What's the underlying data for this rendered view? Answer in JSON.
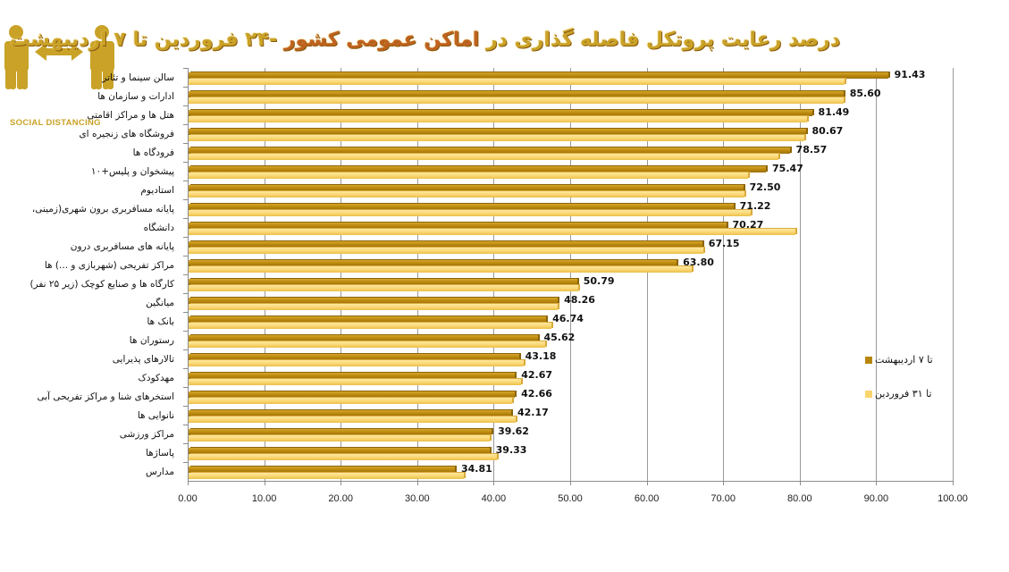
{
  "title": {
    "part1": "درصد رعایت پروتکل فاصله گذاری در",
    "part2": " اماکن عمومی کشور ",
    "part3": "-۲۴ فروردین تا ۷ اردیبهشت",
    "full": "درصد رعایت پروتکل فاصله گذاری در اماکن عمومی کشور -۲۴ فروردین تا ۷ اردیبهشت"
  },
  "logo": {
    "icon": "social-distancing-icon",
    "text": "SOCIAL DISTANCING"
  },
  "legend": {
    "items": [
      {
        "label": "تا ۷ اردیبهشت",
        "color": "#b8860b"
      },
      {
        "label": "تا ۳۱ فروردین",
        "color": "#f9d56e"
      }
    ]
  },
  "colors": {
    "dark_series": "#b8860b",
    "light_series": "#f9d56e",
    "title": "#c9a227",
    "title_accent": "#c0621f"
  },
  "chart_data": {
    "type": "bar",
    "orientation": "horizontal",
    "title": "درصد رعایت پروتکل فاصله گذاری در اماکن عمومی کشور -۲۴ فروردین تا ۷ اردیبهشت",
    "xlabel": "",
    "ylabel": "",
    "xlim": [
      0,
      100
    ],
    "x_ticks": [
      "0.00",
      "10.00",
      "20.00",
      "30.00",
      "40.00",
      "50.00",
      "60.00",
      "70.00",
      "80.00",
      "90.00",
      "100.00"
    ],
    "grid": true,
    "legend_position": "right",
    "categories": [
      "سالن سینما و تئاتر",
      "ادارات و سازمان ها",
      "هتل ها و مراکز اقامتی",
      "فروشگاه های زنجیره ای",
      "فرودگاه ها",
      "پیشخوان و پلیس+۱۰",
      "استادیوم",
      "پایانه مسافربری برون شهری(زمینی، ",
      "دانشگاه",
      "پایانه های مسافربری درون ",
      "مراکز تفریحی (شهربازی و ...) ها",
      "کارگاه ها و صنایع کوچک (زیر ۲۵ نفر)",
      "میانگین",
      "بانک ها",
      "رستوران ها",
      "تالارهای پذیرایی",
      "مهدکودک",
      "استخرهای شنا و مراکز تفریحی آبی",
      "نانوایی ها",
      "مراکز ورزشی",
      "پاساژها",
      "مدارس"
    ],
    "series": [
      {
        "name": "تا ۷ اردیبهشت",
        "values": [
          91.43,
          85.6,
          81.49,
          80.67,
          78.57,
          75.47,
          72.5,
          71.22,
          70.27,
          67.15,
          63.8,
          50.79,
          48.26,
          46.74,
          45.62,
          43.18,
          42.67,
          42.66,
          42.17,
          39.62,
          39.33,
          34.81
        ],
        "labels": [
          "91.43",
          "85.60",
          "81.49",
          "80.67",
          "78.57",
          "75.47",
          "72.50",
          "71.22",
          "70.27",
          "67.15",
          "63.80",
          "50.79",
          "48.26",
          "46.74",
          "45.62",
          "43.18",
          "42.67",
          "42.66",
          "42.17",
          "39.62",
          "39.33",
          "34.81"
        ]
      },
      {
        "name": "تا ۳۱ فروردین",
        "values": [
          85.8,
          85.6,
          80.8,
          80.5,
          77.1,
          73.1,
          72.7,
          73.5,
          79.3,
          67.3,
          65.8,
          50.9,
          48.3,
          47.4,
          46.6,
          43.8,
          43.5,
          42.3,
          42.8,
          39.4,
          40.3,
          36.0
        ]
      }
    ]
  }
}
